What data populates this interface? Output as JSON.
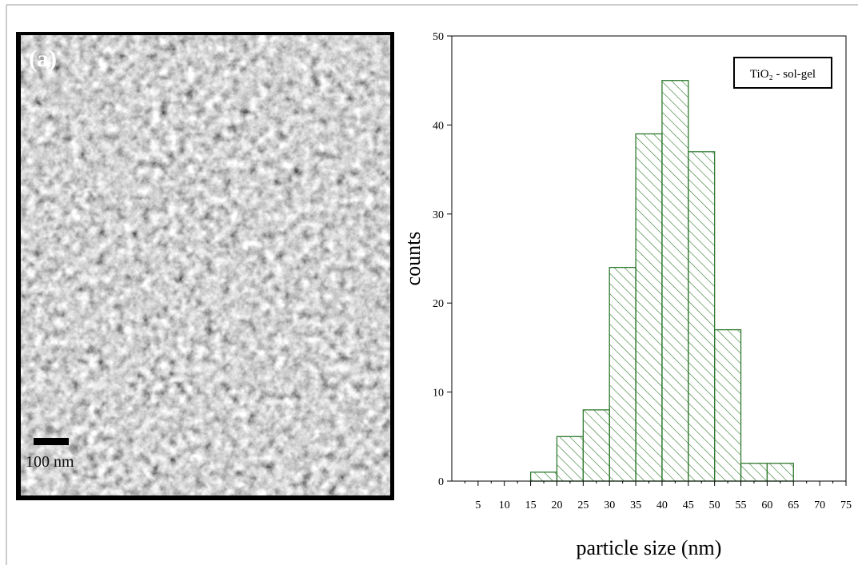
{
  "image": {
    "panel_label": "(a)",
    "scale_bar": "100 nm"
  },
  "chart_data": {
    "type": "histogram",
    "series": [
      {
        "name": "TiO₂ -  sol-gel",
        "color": "#2f7a2f",
        "bins": [
          15,
          20,
          25,
          30,
          35,
          40,
          45,
          50,
          55,
          60,
          65
        ],
        "values": [
          1,
          5,
          8,
          24,
          39,
          45,
          37,
          17,
          2,
          2
        ]
      }
    ],
    "x_label": "particle size (nm)",
    "y_label": "counts",
    "xlim": [
      0,
      75
    ],
    "xticks": [
      5,
      10,
      15,
      20,
      25,
      30,
      35,
      40,
      45,
      50,
      55,
      60,
      65,
      70,
      75
    ],
    "ylim": [
      0,
      50
    ],
    "yticks": [
      0,
      10,
      20,
      30,
      40,
      50
    ],
    "legend": "top-right"
  }
}
